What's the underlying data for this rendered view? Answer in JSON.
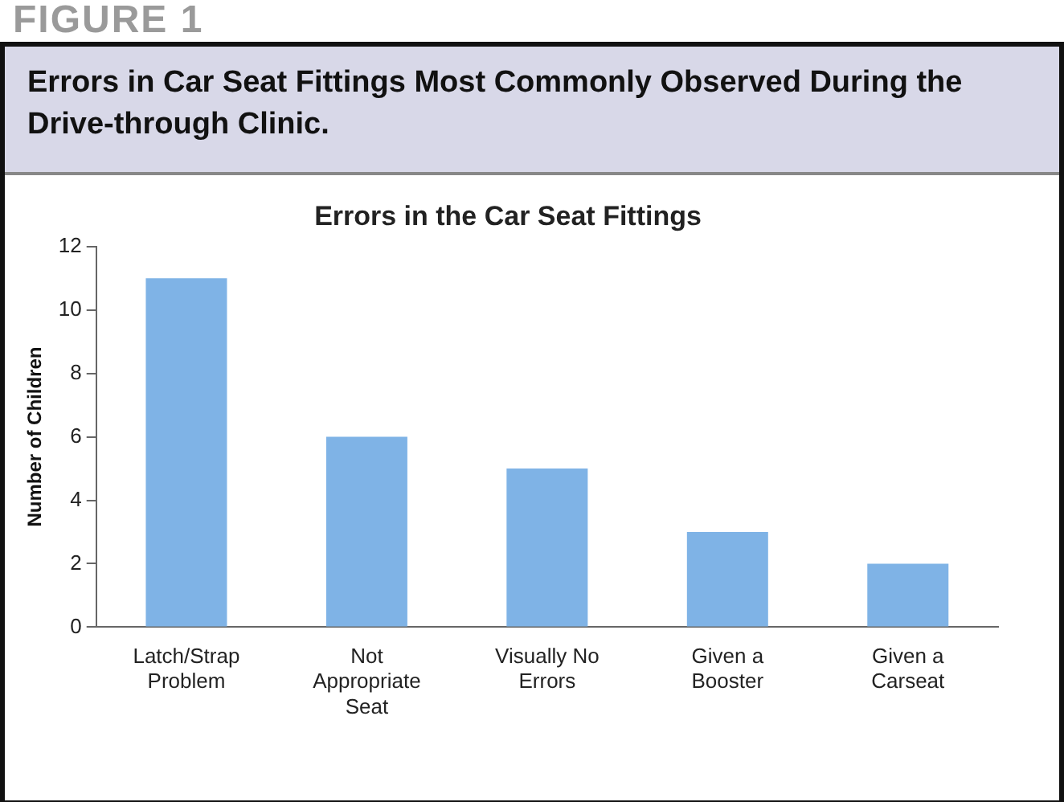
{
  "chart_data": {
    "type": "bar",
    "title": "Errors in Car Seat Fittings Most Commonly Observed During the Drive-through Clinic.",
    "subtitle": "Errors in the Car Seat Fittings",
    "annotations": [
      "FIGURE 1"
    ],
    "ylabel": "Number of Children",
    "categories": [
      "Latch/Strap Problem",
      "Not Appropriate Seat",
      "Visually No Errors",
      "Given a Booster",
      "Given a Carseat"
    ],
    "values": [
      11,
      6,
      5,
      3,
      2
    ],
    "color": "#7fb3e6",
    "ylim": [
      0,
      12
    ],
    "yticks": [
      0,
      2,
      4,
      6,
      8,
      10,
      12
    ],
    "grid": false,
    "legend": false
  }
}
